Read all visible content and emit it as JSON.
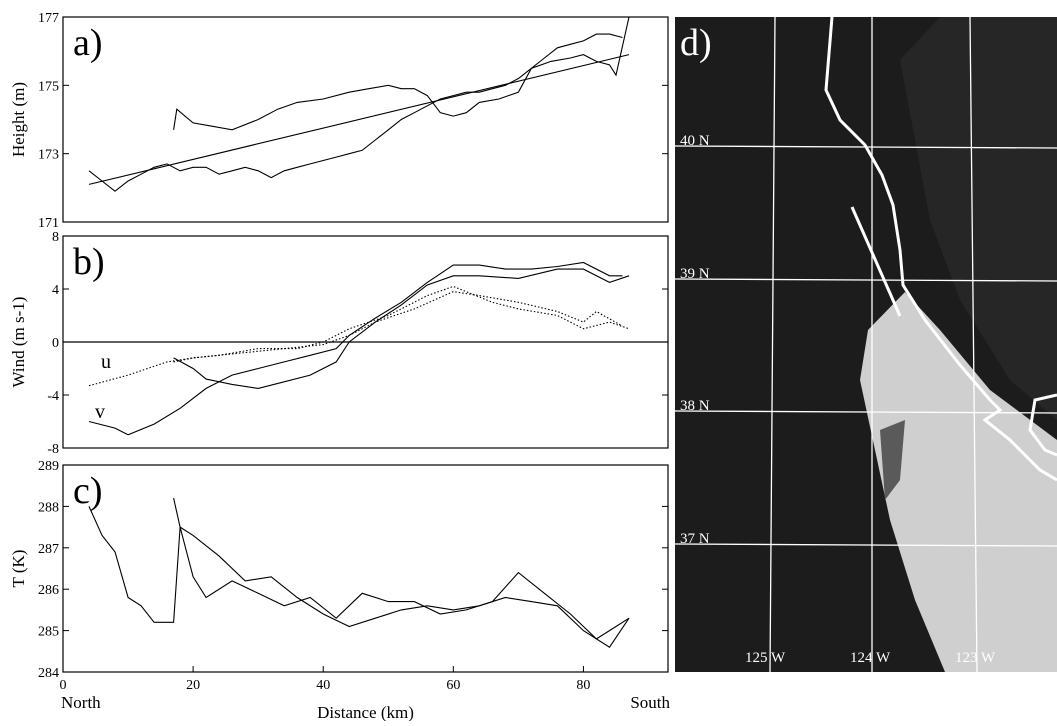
{
  "chart_data": [
    {
      "type": "line",
      "panel_label": "a)",
      "ylabel": "Height (m)",
      "xlim": [
        0,
        93
      ],
      "ylim": [
        171,
        177
      ],
      "yticks": [
        171,
        173,
        175,
        177
      ],
      "series": [
        {
          "color": "#000000",
          "dash": false,
          "x": [
            4,
            6,
            8,
            10,
            12,
            14,
            16,
            18,
            20,
            22,
            24,
            26,
            28,
            30,
            32,
            34,
            36,
            38,
            40,
            42,
            44,
            46,
            48,
            50,
            52,
            54,
            56,
            58,
            60,
            62,
            64,
            66,
            68,
            70,
            72,
            74,
            76,
            78,
            80,
            82,
            84,
            86
          ],
          "values": [
            172.5,
            172.2,
            171.9,
            172.2,
            172.4,
            172.6,
            172.7,
            172.5,
            172.6,
            172.6,
            172.4,
            172.5,
            172.6,
            172.5,
            172.3,
            172.5,
            172.6,
            172.7,
            172.8,
            172.9,
            173.0,
            173.1,
            173.4,
            173.7,
            174.0,
            174.2,
            174.4,
            174.6,
            174.7,
            174.8,
            174.8,
            174.9,
            175.0,
            175.2,
            175.5,
            175.8,
            176.1,
            176.2,
            176.3,
            176.5,
            176.5,
            176.4
          ]
        },
        {
          "color": "#000000",
          "dash": false,
          "x": [
            17,
            17.5,
            20,
            23,
            26,
            30,
            33,
            36,
            40,
            44,
            47,
            50,
            52,
            54,
            56,
            58,
            60,
            62,
            64,
            67,
            70,
            72,
            75,
            78,
            80,
            82,
            84,
            85,
            87
          ],
          "values": [
            173.7,
            174.3,
            173.9,
            173.8,
            173.7,
            174.0,
            174.3,
            174.5,
            174.6,
            174.8,
            174.9,
            175.0,
            174.9,
            174.9,
            174.7,
            174.2,
            174.1,
            174.2,
            174.5,
            174.6,
            174.8,
            175.5,
            175.7,
            175.8,
            175.9,
            175.7,
            175.6,
            175.3,
            177.0
          ]
        },
        {
          "color": "#000000",
          "dash": false,
          "x": [
            4,
            87
          ],
          "values": [
            172.1,
            175.9
          ]
        }
      ]
    },
    {
      "type": "line",
      "panel_label": "b)",
      "ylabel": "Wind (m s-1)",
      "xlim": [
        0,
        93
      ],
      "ylim": [
        -8,
        8
      ],
      "yticks": [
        -8,
        -4,
        0,
        4,
        8
      ],
      "zero_line": true,
      "annotations": [
        "u",
        "v"
      ],
      "series": [
        {
          "color": "#000000",
          "dash": true,
          "x": [
            4,
            10,
            16,
            20,
            28,
            34,
            40,
            44,
            48,
            54,
            60,
            64,
            70,
            76,
            80,
            82,
            86
          ],
          "values": [
            -3.3,
            -2.5,
            -1.5,
            -1.2,
            -0.8,
            -0.5,
            -0.2,
            0.5,
            1.5,
            2.5,
            3.8,
            3.5,
            3.0,
            2.3,
            1.5,
            2.3,
            1.2
          ]
        },
        {
          "color": "#000000",
          "dash": true,
          "x": [
            17,
            20,
            24,
            30,
            36,
            40,
            44,
            50,
            56,
            60,
            66,
            70,
            76,
            80,
            84,
            87
          ],
          "values": [
            -1.5,
            -1.2,
            -1.0,
            -0.5,
            -0.5,
            0,
            1.0,
            2.0,
            3.5,
            4.2,
            3.0,
            2.5,
            2.0,
            1.0,
            1.5,
            1.0
          ]
        },
        {
          "color": "#000000",
          "dash": false,
          "x": [
            4,
            8,
            10,
            14,
            18,
            22,
            26,
            30,
            34,
            38,
            42,
            44,
            48,
            52,
            56,
            60,
            64,
            68,
            72,
            76,
            80,
            84,
            86
          ],
          "values": [
            -6,
            -6.5,
            -7,
            -6.2,
            -5,
            -3.5,
            -2.5,
            -2.0,
            -1.5,
            -1.0,
            -0.5,
            0.5,
            1.8,
            3.0,
            4.5,
            5.8,
            5.8,
            5.5,
            5.5,
            5.7,
            6.0,
            5.0,
            5.0
          ]
        },
        {
          "color": "#000000",
          "dash": false,
          "x": [
            17,
            20,
            22,
            26,
            30,
            34,
            38,
            42,
            44,
            48,
            52,
            56,
            60,
            64,
            70,
            76,
            80,
            84,
            87
          ],
          "values": [
            -1.2,
            -2.0,
            -2.8,
            -3.2,
            -3.5,
            -3.0,
            -2.5,
            -1.5,
            0,
            1.5,
            2.8,
            4.3,
            5.0,
            5.0,
            4.8,
            5.5,
            5.5,
            4.5,
            5.0
          ]
        }
      ]
    },
    {
      "type": "line",
      "panel_label": "c)",
      "ylabel": "T (K)",
      "xlabel": "Distance (km)",
      "x_end_labels": [
        "North",
        "South"
      ],
      "xlim": [
        0,
        93
      ],
      "xticks": [
        0,
        20,
        40,
        60,
        80
      ],
      "ylim": [
        284,
        289
      ],
      "yticks": [
        284,
        285,
        286,
        287,
        288,
        289
      ],
      "series": [
        {
          "color": "#000000",
          "dash": false,
          "x": [
            4,
            6,
            8,
            10,
            12,
            14,
            17,
            18,
            20,
            22,
            26,
            30,
            34,
            38,
            42,
            46,
            50,
            54,
            58,
            62,
            66,
            70,
            74,
            78,
            82,
            85,
            87
          ],
          "values": [
            288,
            287.3,
            286.9,
            285.8,
            285.6,
            285.2,
            285.2,
            287.5,
            286.3,
            285.8,
            286.2,
            285.9,
            285.6,
            285.8,
            285.3,
            285.9,
            285.7,
            285.7,
            285.4,
            285.5,
            285.7,
            286.4,
            285.9,
            285.4,
            284.8,
            285.1,
            285.3
          ]
        },
        {
          "color": "#000000",
          "dash": false,
          "x": [
            17,
            18,
            20,
            24,
            28,
            32,
            36,
            40,
            44,
            48,
            52,
            56,
            60,
            64,
            68,
            72,
            76,
            80,
            84,
            87
          ],
          "values": [
            288.2,
            287.5,
            287.3,
            286.8,
            286.2,
            286.3,
            285.8,
            285.4,
            285.1,
            285.3,
            285.5,
            285.6,
            285.5,
            285.6,
            285.8,
            285.7,
            285.6,
            285.0,
            284.6,
            285.3
          ]
        }
      ]
    }
  ],
  "map": {
    "panel_label": "d)",
    "lat_labels": [
      "40 N",
      "39 N",
      "38 N",
      "37 N"
    ],
    "lon_labels": [
      "125 W",
      "124 W",
      "123 W"
    ]
  }
}
